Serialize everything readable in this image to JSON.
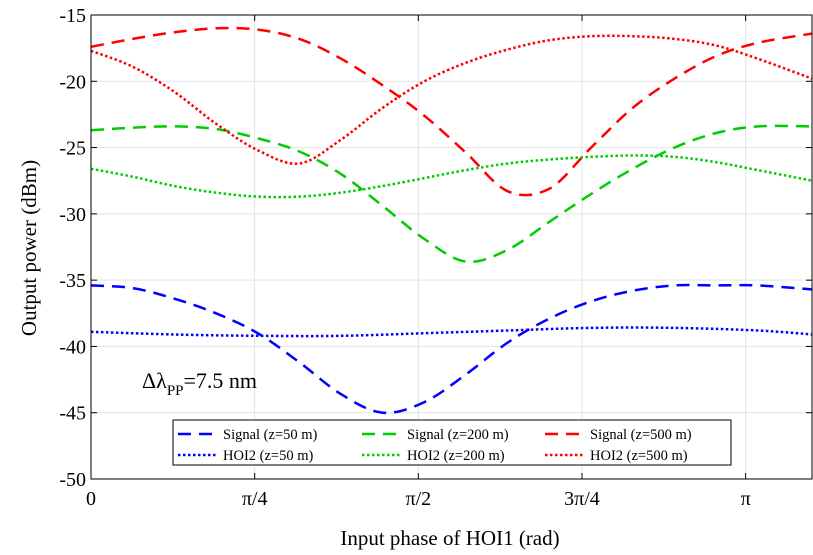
{
  "chart_data": {
    "type": "line",
    "xlabel": "Input phase of HOI1 (rad)",
    "ylabel": "Output power (dBm)",
    "xlim": [
      0,
      3.46
    ],
    "ylim": [
      -50,
      -15
    ],
    "grid": true,
    "legend_placement": "bottom-center",
    "annotation": {
      "prefix": "Δλ",
      "subscript": "PP",
      "suffix": "=7.5 nm"
    },
    "xticks": [
      {
        "value": 0,
        "label": "0"
      },
      {
        "value": 0.7854,
        "label": "π/4"
      },
      {
        "value": 1.5708,
        "label": "π/2"
      },
      {
        "value": 2.3562,
        "label": "3π/4"
      },
      {
        "value": 3.1416,
        "label": "π"
      }
    ],
    "yticks": [
      {
        "value": -15,
        "label": "-15"
      },
      {
        "value": -20,
        "label": "-20"
      },
      {
        "value": -25,
        "label": "-25"
      },
      {
        "value": -30,
        "label": "-30"
      },
      {
        "value": -35,
        "label": "-35"
      },
      {
        "value": -40,
        "label": "-40"
      },
      {
        "value": -45,
        "label": "-45"
      },
      {
        "value": -50,
        "label": "-50"
      }
    ],
    "series": [
      {
        "name": "Signal (z=50 m)",
        "color": "#0000ff",
        "style": "dashed",
        "x": [
          0,
          0.2,
          0.4,
          0.6,
          0.8,
          1.0,
          1.2,
          1.4,
          1.6,
          1.8,
          2.0,
          2.2,
          2.4,
          2.6,
          2.8,
          3.0,
          3.2,
          3.46
        ],
        "y": [
          -35.4,
          -35.6,
          -36.4,
          -37.5,
          -39.0,
          -41.2,
          -43.6,
          -45.0,
          -44.2,
          -42.1,
          -39.7,
          -37.9,
          -36.6,
          -35.8,
          -35.4,
          -35.4,
          -35.4,
          -35.7
        ]
      },
      {
        "name": "Signal (z=200 m)",
        "color": "#00cc00",
        "style": "dashed",
        "x": [
          0,
          0.2,
          0.4,
          0.6,
          0.8,
          1.0,
          1.2,
          1.4,
          1.6,
          1.8,
          2.0,
          2.2,
          2.4,
          2.6,
          2.8,
          3.0,
          3.2,
          3.46
        ],
        "y": [
          -23.7,
          -23.5,
          -23.4,
          -23.6,
          -24.3,
          -25.3,
          -27.0,
          -29.4,
          -31.9,
          -33.6,
          -32.7,
          -30.6,
          -28.5,
          -26.6,
          -25.0,
          -23.9,
          -23.4,
          -23.4
        ]
      },
      {
        "name": "Signal (z=500 m)",
        "color": "#ff0000",
        "style": "dashed",
        "x": [
          0,
          0.2,
          0.4,
          0.6,
          0.8,
          1.0,
          1.2,
          1.4,
          1.6,
          1.8,
          2.0,
          2.2,
          2.4,
          2.6,
          2.8,
          3.0,
          3.2,
          3.46
        ],
        "y": [
          -17.4,
          -16.8,
          -16.3,
          -16.0,
          -16.1,
          -16.8,
          -18.3,
          -20.3,
          -22.6,
          -25.4,
          -28.3,
          -28.1,
          -25.0,
          -22.0,
          -19.8,
          -18.1,
          -17.1,
          -16.4
        ]
      },
      {
        "name": "HOI2 (z=50 m)",
        "color": "#0000ff",
        "style": "dotted",
        "x": [
          0,
          0.4,
          0.8,
          1.2,
          1.6,
          2.0,
          2.4,
          2.8,
          3.2,
          3.46
        ],
        "y": [
          -38.9,
          -39.1,
          -39.2,
          -39.2,
          -39.0,
          -38.8,
          -38.6,
          -38.6,
          -38.8,
          -39.1
        ]
      },
      {
        "name": "HOI2 (z=200 m)",
        "color": "#00cc00",
        "style": "dotted",
        "x": [
          0,
          0.2,
          0.4,
          0.6,
          0.8,
          1.0,
          1.2,
          1.4,
          1.6,
          1.8,
          2.0,
          2.2,
          2.4,
          2.6,
          2.8,
          3.0,
          3.2,
          3.46
        ],
        "y": [
          -26.6,
          -27.2,
          -27.9,
          -28.4,
          -28.7,
          -28.7,
          -28.4,
          -27.9,
          -27.3,
          -26.7,
          -26.2,
          -25.9,
          -25.7,
          -25.6,
          -25.7,
          -26.1,
          -26.7,
          -27.5
        ]
      },
      {
        "name": "HOI2 (z=500 m)",
        "color": "#ff0000",
        "style": "dotted",
        "x": [
          0,
          0.2,
          0.4,
          0.6,
          0.8,
          1.0,
          1.2,
          1.4,
          1.6,
          1.8,
          2.0,
          2.2,
          2.4,
          2.6,
          2.8,
          3.0,
          3.2,
          3.46
        ],
        "y": [
          -17.7,
          -18.9,
          -20.8,
          -23.2,
          -25.2,
          -26.2,
          -24.4,
          -22.0,
          -20.0,
          -18.6,
          -17.6,
          -16.9,
          -16.6,
          -16.6,
          -16.8,
          -17.3,
          -18.3,
          -19.8
        ]
      }
    ]
  }
}
